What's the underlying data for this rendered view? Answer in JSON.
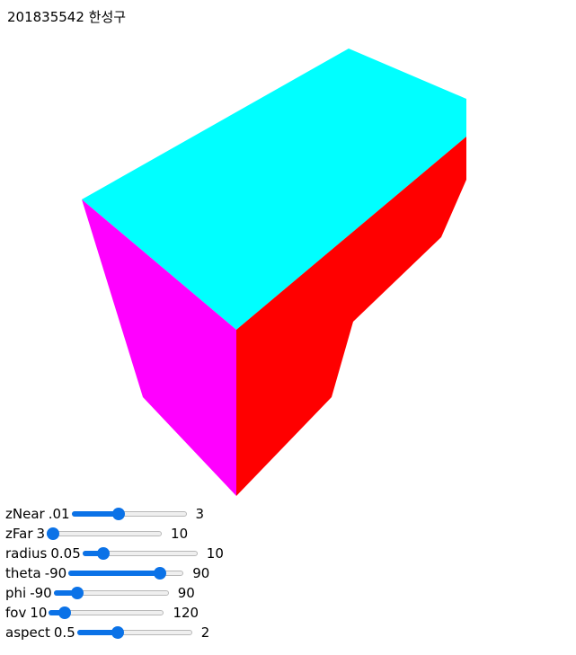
{
  "header": {
    "title": "201835542 한성구"
  },
  "scene": {
    "faces": [
      {
        "name": "top-face",
        "color": "#00ffff"
      },
      {
        "name": "left-face",
        "color": "#ff00ff"
      },
      {
        "name": "right-face",
        "color": "#ff0000"
      }
    ]
  },
  "controls": [
    {
      "label": "zNear",
      "min_label": ".01",
      "max_label": "3",
      "min": 0.01,
      "max": 3,
      "value": 1.2
    },
    {
      "label": "zFar",
      "min_label": "3",
      "max_label": "10",
      "min": 3,
      "max": 10,
      "value": 3
    },
    {
      "label": "radius",
      "min_label": "0.05",
      "max_label": "10",
      "min": 0.05,
      "max": 10,
      "value": 1.5
    },
    {
      "label": "theta",
      "min_label": "-90",
      "max_label": "90",
      "min": -90,
      "max": 90,
      "value": 60
    },
    {
      "label": "phi",
      "min_label": "-90",
      "max_label": "90",
      "min": -90,
      "max": 90,
      "value": -60
    },
    {
      "label": "fov",
      "min_label": "10",
      "max_label": "120",
      "min": 10,
      "max": 120,
      "value": 20
    },
    {
      "label": "aspect",
      "min_label": "0.5",
      "max_label": "2",
      "min": 0.5,
      "max": 2,
      "value": 1
    }
  ]
}
